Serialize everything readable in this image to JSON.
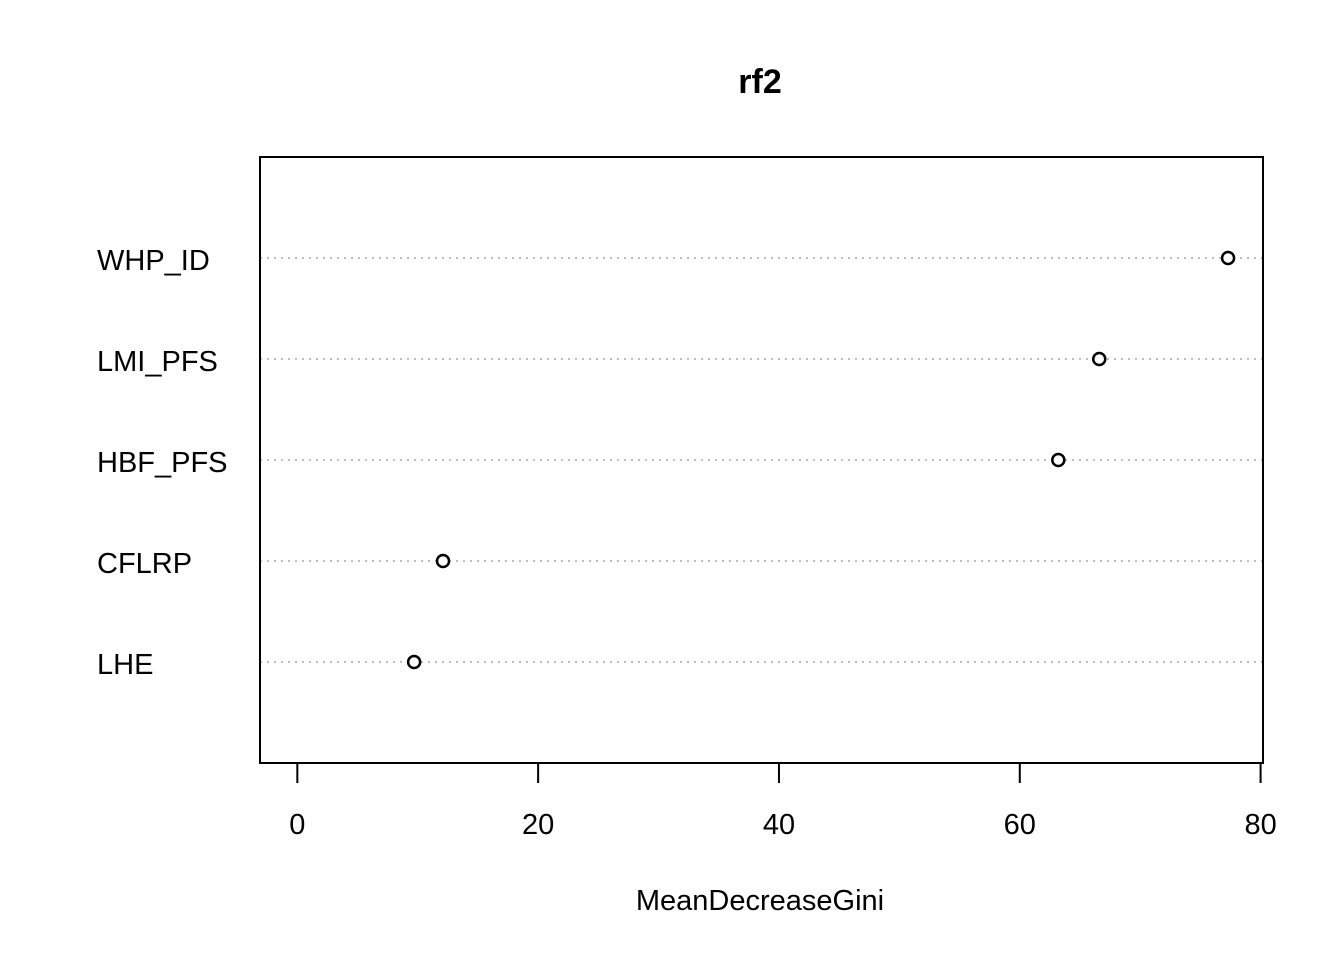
{
  "chart_data": {
    "type": "scatter",
    "title": "rf2",
    "xlabel": "MeanDecreaseGini",
    "ylabel": "",
    "categories": [
      "WHP_ID",
      "LMI_PFS",
      "HBF_PFS",
      "CFLRP",
      "LHE"
    ],
    "values": [
      77.3,
      66.6,
      63.2,
      12.1,
      9.7
    ],
    "xlim": [
      -3.1,
      80.2
    ],
    "xticks": [
      0,
      20,
      40,
      60,
      80
    ],
    "grid": "dotted horizontal guides per category",
    "legend": "none"
  }
}
